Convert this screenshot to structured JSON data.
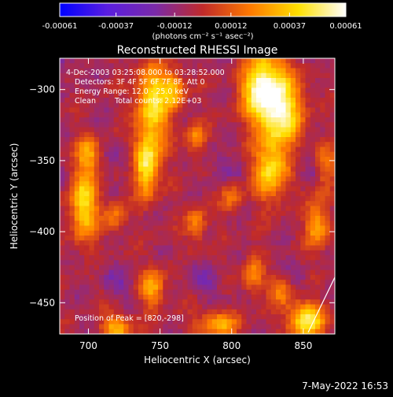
{
  "chart_data": {
    "type": "heatmap",
    "title": "Reconstructed RHESSI Image",
    "xlabel": "Heliocentric X (arcsec)",
    "ylabel": "Heliocentric Y (arcsec)",
    "xlim": [
      680,
      872
    ],
    "ylim": [
      -472,
      -278
    ],
    "x_ticks": [
      700,
      750,
      800,
      850
    ],
    "y_ticks": [
      -300,
      -350,
      -400,
      -450
    ],
    "colorbar": {
      "ticks": [
        "-0.00061",
        "-0.00037",
        "-0.00012",
        "0.00012",
        "0.00037",
        "0.00061"
      ],
      "unit": "(photons cm⁻² s⁻¹ asec⁻²)",
      "range": [
        -0.00061,
        0.00061
      ],
      "colors": [
        "#0000ff",
        "#5a1ee0",
        "#7a2aa8",
        "#c02a2a",
        "#ff7a00",
        "#ffe000",
        "#ffffff"
      ]
    },
    "annotations": {
      "time": "4-Dec-2003 03:25:08.000 to 03:28:52.000",
      "detectors": "Detectors: 3F 4F 5F 6F 7F 8F, Att 0",
      "energy": "Energy Range: 12.0 - 25.0 keV",
      "clean": "Clean",
      "counts": "Total counts: 2.12E+03",
      "peak": "Position of Peak = [820,-298]"
    },
    "peak": [
      820,
      -298
    ],
    "bright_sources": [
      {
        "x": 697,
        "y": -380,
        "v": 0.00048,
        "sx": 7,
        "sy": 18
      },
      {
        "x": 745,
        "y": -310,
        "v": 0.0005,
        "sx": 8,
        "sy": 22
      },
      {
        "x": 740,
        "y": -355,
        "v": 0.00058,
        "sx": 6,
        "sy": 14
      },
      {
        "x": 760,
        "y": -300,
        "v": 0.00035,
        "sx": 5,
        "sy": 10
      },
      {
        "x": 775,
        "y": -335,
        "v": 0.0003,
        "sx": 5,
        "sy": 8
      },
      {
        "x": 820,
        "y": -298,
        "v": 0.00061,
        "sx": 9,
        "sy": 18
      },
      {
        "x": 835,
        "y": -315,
        "v": 0.00056,
        "sx": 10,
        "sy": 20
      },
      {
        "x": 827,
        "y": -358,
        "v": 0.00045,
        "sx": 8,
        "sy": 14
      },
      {
        "x": 860,
        "y": -395,
        "v": 0.00035,
        "sx": 6,
        "sy": 12
      },
      {
        "x": 865,
        "y": -355,
        "v": 0.0003,
        "sx": 5,
        "sy": 12
      },
      {
        "x": 700,
        "y": -345,
        "v": 0.0003,
        "sx": 6,
        "sy": 8
      },
      {
        "x": 720,
        "y": -468,
        "v": 0.0004,
        "sx": 7,
        "sy": 7
      },
      {
        "x": 745,
        "y": -440,
        "v": 0.00035,
        "sx": 6,
        "sy": 10
      },
      {
        "x": 790,
        "y": -465,
        "v": 0.00038,
        "sx": 10,
        "sy": 6
      },
      {
        "x": 815,
        "y": -430,
        "v": 0.00028,
        "sx": 5,
        "sy": 10
      },
      {
        "x": 852,
        "y": -462,
        "v": 0.00055,
        "sx": 9,
        "sy": 9
      },
      {
        "x": 835,
        "y": -440,
        "v": 0.0003,
        "sx": 6,
        "sy": 8
      },
      {
        "x": 718,
        "y": -390,
        "v": 0.00025,
        "sx": 5,
        "sy": 8
      },
      {
        "x": 775,
        "y": -395,
        "v": 0.00028,
        "sx": 5,
        "sy": 9
      },
      {
        "x": 800,
        "y": -375,
        "v": 0.00025,
        "sx": 5,
        "sy": 8
      }
    ]
  },
  "footer": {
    "date": "7-May-2022 16:53"
  }
}
